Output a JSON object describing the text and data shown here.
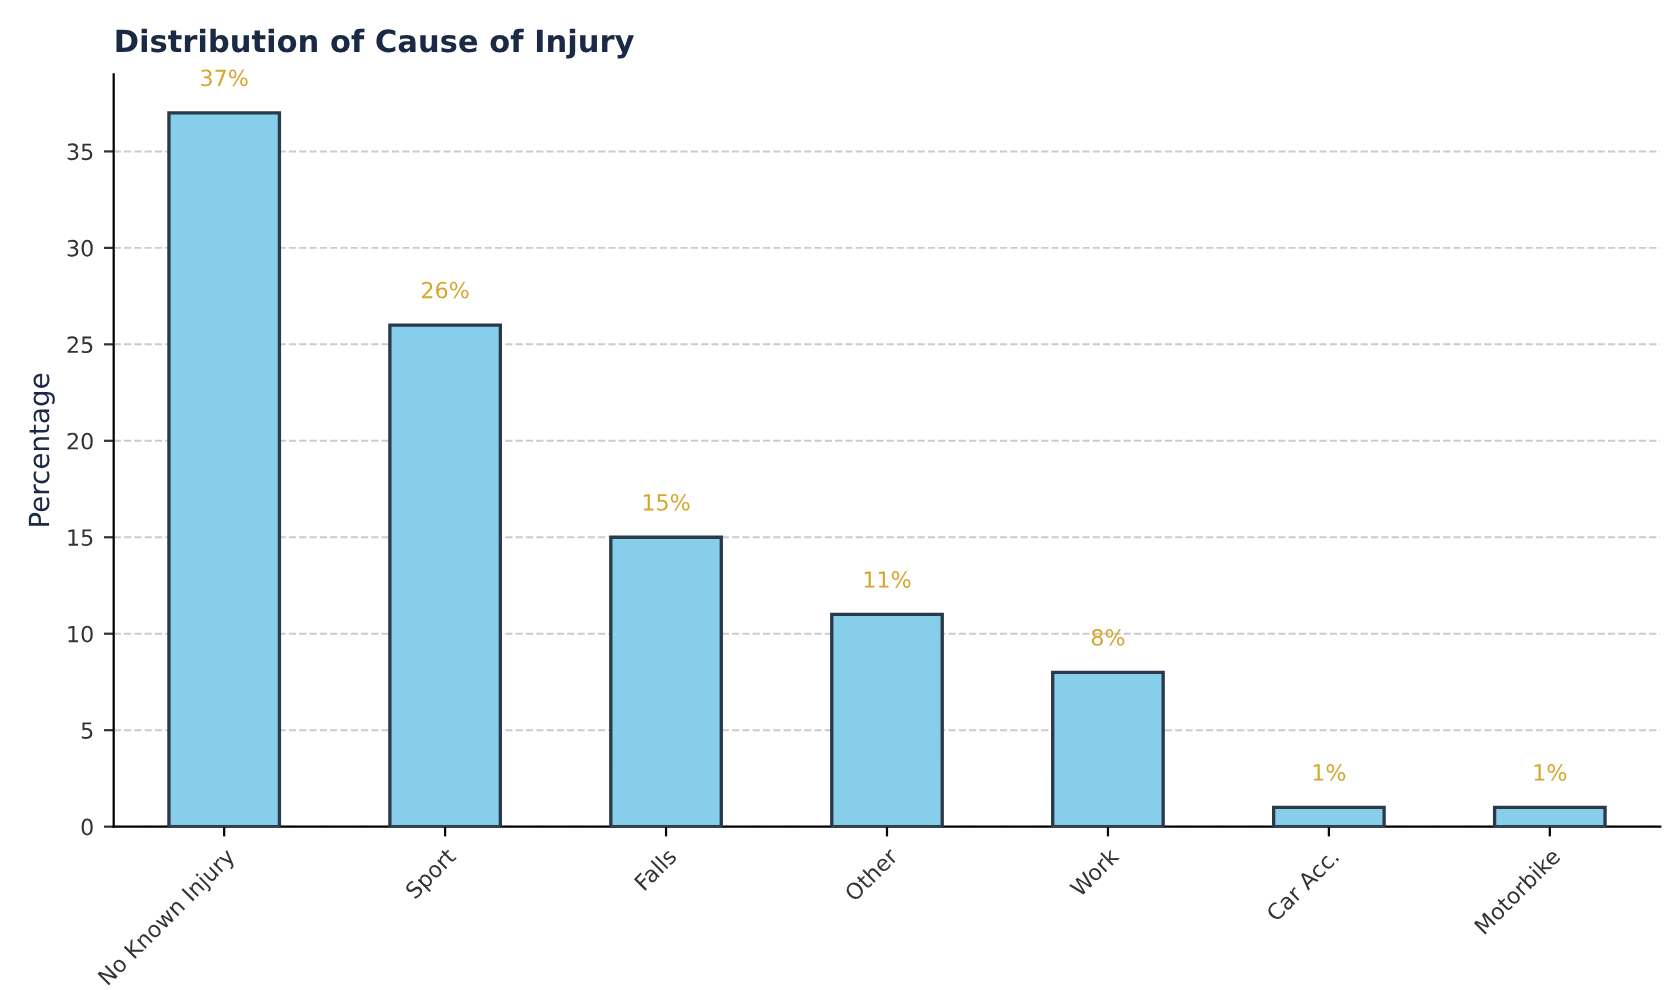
{
  "chart_data": {
    "type": "bar",
    "title": "Distribution of Cause of Injury",
    "ylabel": "Percentage",
    "categories": [
      "No Known Injury",
      "Sport",
      "Falls",
      "Other",
      "Work",
      "Car Acc.",
      "Motorbike"
    ],
    "values": [
      37,
      26,
      15,
      11,
      8,
      1,
      1
    ],
    "value_labels": [
      "37%",
      "26%",
      "15%",
      "11%",
      "8%",
      "1%",
      "1%"
    ],
    "color": "#87ceeb",
    "ylim": [
      0,
      39
    ],
    "yticks": [
      0,
      5,
      10,
      15,
      20,
      25,
      30,
      35
    ],
    "grid": "y",
    "legend": false
  }
}
